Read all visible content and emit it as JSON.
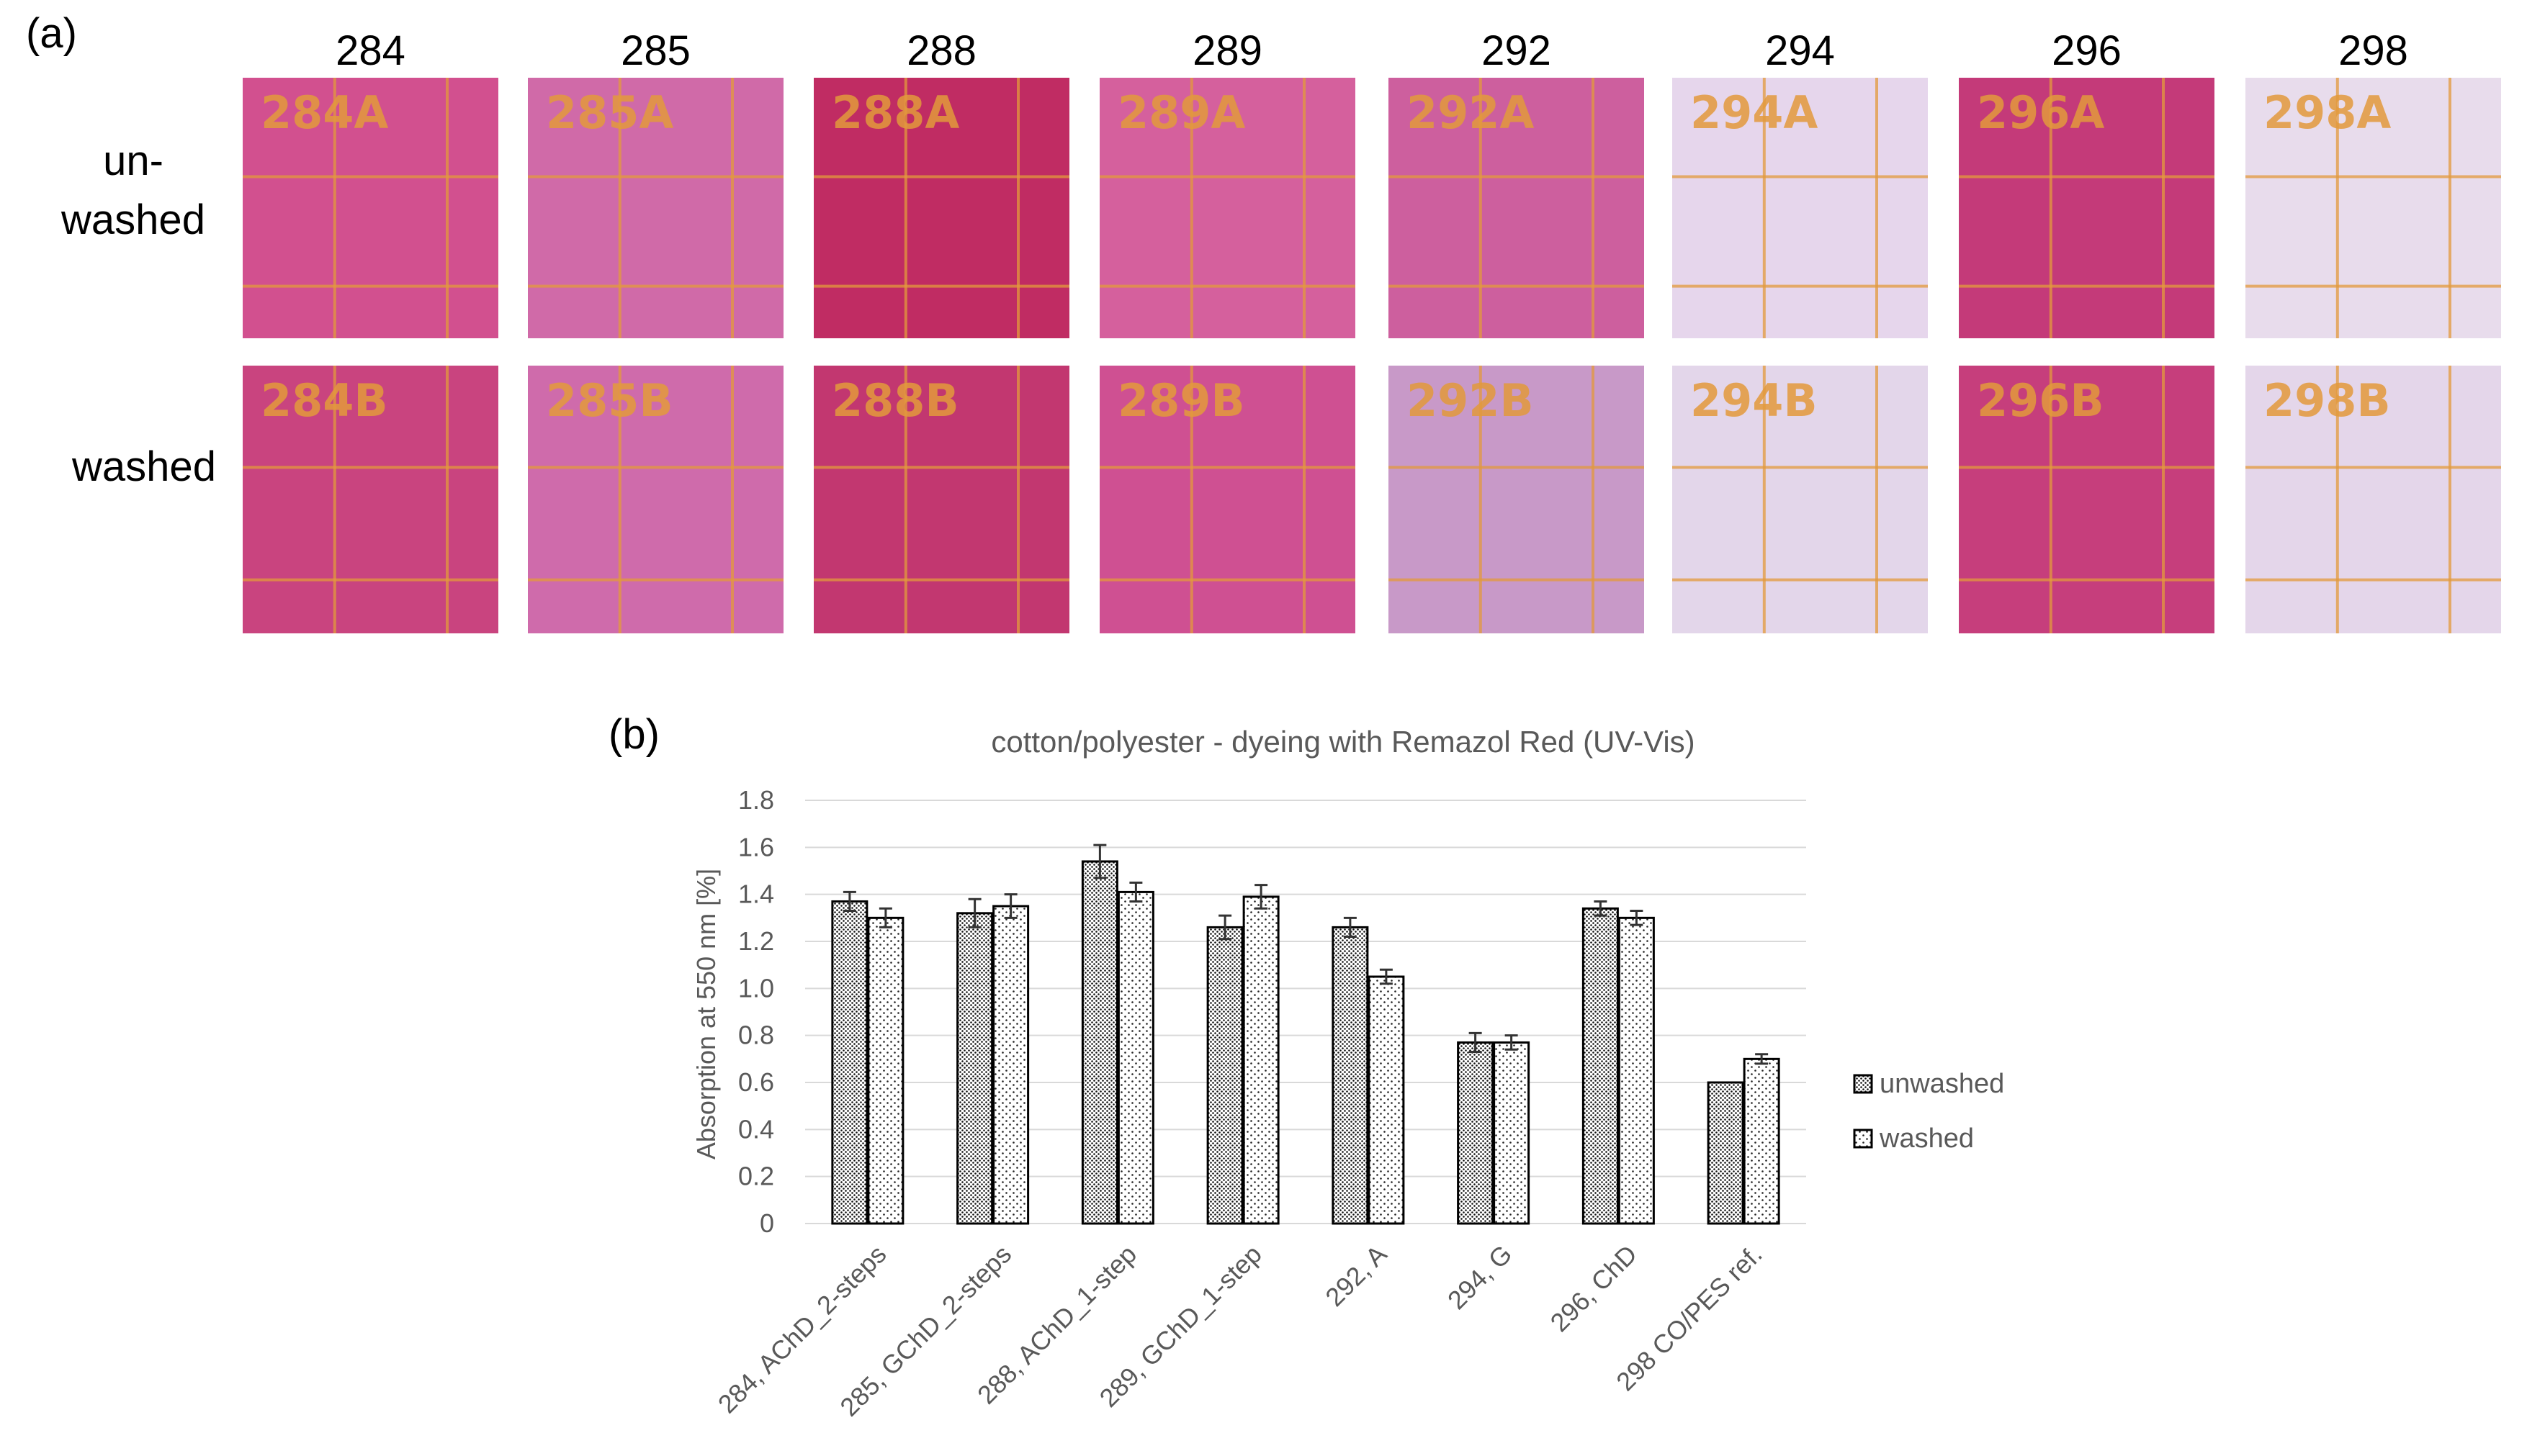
{
  "panel_a": {
    "label": "(a)",
    "row_labels": [
      [
        "un-",
        "washed"
      ],
      [
        "washed"
      ]
    ],
    "samples": [
      {
        "code": "284",
        "tag_a": "284A",
        "tag_b": "284B",
        "color_a": "#d2508f",
        "color_b": "#c9447f"
      },
      {
        "code": "285",
        "tag_a": "285A",
        "tag_b": "285B",
        "color_a": "#d06aa8",
        "color_b": "#cf6bab"
      },
      {
        "code": "288",
        "tag_a": "288A",
        "tag_b": "288B",
        "color_a": "#c02c63",
        "color_b": "#c23770"
      },
      {
        "code": "289",
        "tag_a": "289A",
        "tag_b": "289B",
        "color_a": "#d5609d",
        "color_b": "#cf5092"
      },
      {
        "code": "292",
        "tag_a": "292A",
        "tag_b": "292B",
        "color_a": "#cd5f9e",
        "color_b": "#c899c8"
      },
      {
        "code": "294",
        "tag_a": "294A",
        "tag_b": "294B",
        "color_a": "#e6d6ec",
        "color_b": "#e3d6ea"
      },
      {
        "code": "296",
        "tag_a": "296A",
        "tag_b": "296B",
        "color_a": "#c43a79",
        "color_b": "#c63e7c"
      },
      {
        "code": "298",
        "tag_a": "298A",
        "tag_b": "298B",
        "color_a": "#e8dcec",
        "color_b": "#e4d6ea"
      }
    ],
    "grid_color": "#e39a3c"
  },
  "chart_data": {
    "type": "bar",
    "panel_label": "(b)",
    "title": "cotton/polyester - dyeing with Remazol Red (UV-Vis)",
    "xlabel": "",
    "ylabel": "Absorption at 550 nm [%]",
    "ylim": [
      0,
      1.8
    ],
    "yticks": [
      "0",
      "0.2",
      "0.4",
      "0.6",
      "0.8",
      "1.0",
      "1.2",
      "1.4",
      "1.6",
      "1.8"
    ],
    "categories": [
      "284, AChD_2-steps",
      "285, GChD_2-steps",
      "288, AChD_1-step",
      "289, GChD_1-step",
      "292, A",
      "294, G",
      "296, ChD",
      "298  CO/PES ref."
    ],
    "series": [
      {
        "name": "unwashed",
        "values": [
          1.37,
          1.32,
          1.54,
          1.26,
          1.26,
          0.77,
          1.34,
          0.6
        ],
        "errors": [
          0.04,
          0.06,
          0.07,
          0.05,
          0.04,
          0.04,
          0.03,
          0.0
        ]
      },
      {
        "name": "washed",
        "values": [
          1.3,
          1.35,
          1.41,
          1.39,
          1.05,
          0.77,
          1.3,
          0.7
        ],
        "errors": [
          0.04,
          0.05,
          0.04,
          0.05,
          0.03,
          0.03,
          0.03,
          0.02
        ]
      }
    ],
    "grid": true,
    "legend_position": "right",
    "colors": {
      "grid": "#d9d9d9",
      "axis_text": "#595959",
      "bar_edge": "#000000",
      "unwashed_fill": "#9a9a9a",
      "washed_fill": "#cfcfcf"
    }
  }
}
